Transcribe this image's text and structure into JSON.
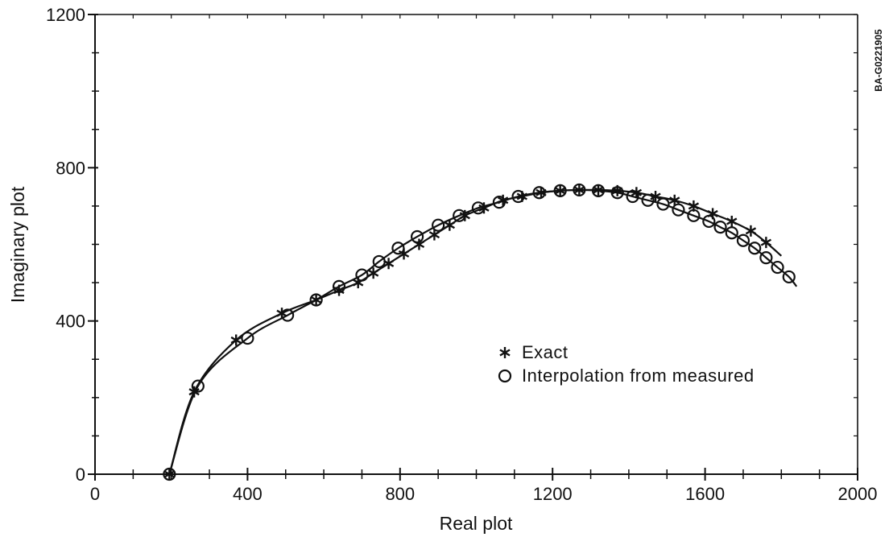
{
  "chart_data": {
    "type": "scatter",
    "xlabel": "Real plot",
    "ylabel": "Imaginary plot",
    "xlim": [
      0,
      2000
    ],
    "ylim": [
      0,
      1200
    ],
    "x_ticks": [
      "0",
      "400",
      "800",
      "1200",
      "1600",
      "2000"
    ],
    "y_ticks": [
      "0",
      "400",
      "800",
      "1200"
    ],
    "x_tick_values": [
      0,
      400,
      800,
      1200,
      1600,
      2000
    ],
    "y_tick_values": [
      0,
      400,
      800,
      1200
    ],
    "grid": false,
    "legend_position": "center-right",
    "side_label": "BA-G0221905",
    "series": [
      {
        "name": "Exact",
        "marker": "asterisk",
        "x": [
          195,
          260,
          370,
          490,
          580,
          640,
          690,
          730,
          770,
          810,
          850,
          890,
          930,
          970,
          1020,
          1070,
          1120,
          1170,
          1220,
          1270,
          1320,
          1370,
          1420,
          1470,
          1520,
          1570,
          1620,
          1670,
          1720,
          1760
        ],
        "y": [
          0,
          215,
          350,
          420,
          455,
          480,
          500,
          525,
          550,
          575,
          600,
          625,
          650,
          675,
          695,
          715,
          725,
          735,
          740,
          742,
          742,
          740,
          735,
          725,
          715,
          700,
          680,
          660,
          635,
          605
        ]
      },
      {
        "name": "Interpolation from measured",
        "marker": "circle",
        "x": [
          195,
          270,
          400,
          505,
          580,
          640,
          700,
          745,
          795,
          845,
          900,
          955,
          1005,
          1060,
          1110,
          1165,
          1220,
          1270,
          1320,
          1370,
          1410,
          1450,
          1490,
          1530,
          1570,
          1610,
          1640,
          1670,
          1700,
          1730,
          1760,
          1790,
          1820
        ],
        "y": [
          0,
          230,
          355,
          415,
          455,
          490,
          520,
          555,
          590,
          620,
          650,
          675,
          695,
          710,
          725,
          735,
          740,
          742,
          740,
          735,
          725,
          715,
          705,
          690,
          675,
          660,
          645,
          630,
          610,
          590,
          565,
          540,
          515
        ]
      }
    ],
    "curves": [
      {
        "series": "Exact",
        "x": [
          195,
          260,
          370,
          490,
          580,
          640,
          690,
          730,
          770,
          810,
          850,
          890,
          930,
          970,
          1020,
          1070,
          1120,
          1170,
          1220,
          1270,
          1320,
          1370,
          1420,
          1470,
          1520,
          1570,
          1620,
          1670,
          1720,
          1760,
          1800
        ],
        "y": [
          0,
          215,
          350,
          420,
          455,
          480,
          500,
          525,
          550,
          575,
          600,
          625,
          650,
          675,
          695,
          715,
          725,
          735,
          740,
          742,
          742,
          740,
          735,
          725,
          715,
          700,
          680,
          660,
          635,
          605,
          570
        ]
      },
      {
        "series": "Interpolation from measured",
        "x": [
          195,
          270,
          400,
          505,
          580,
          640,
          700,
          745,
          795,
          845,
          900,
          955,
          1005,
          1060,
          1110,
          1165,
          1220,
          1270,
          1320,
          1370,
          1410,
          1450,
          1490,
          1530,
          1570,
          1610,
          1640,
          1670,
          1700,
          1730,
          1760,
          1790,
          1820,
          1840
        ],
        "y": [
          0,
          230,
          355,
          415,
          455,
          490,
          520,
          555,
          590,
          620,
          650,
          675,
          695,
          710,
          725,
          735,
          740,
          742,
          740,
          735,
          725,
          715,
          705,
          690,
          675,
          660,
          645,
          630,
          610,
          590,
          565,
          540,
          515,
          490
        ]
      }
    ]
  }
}
